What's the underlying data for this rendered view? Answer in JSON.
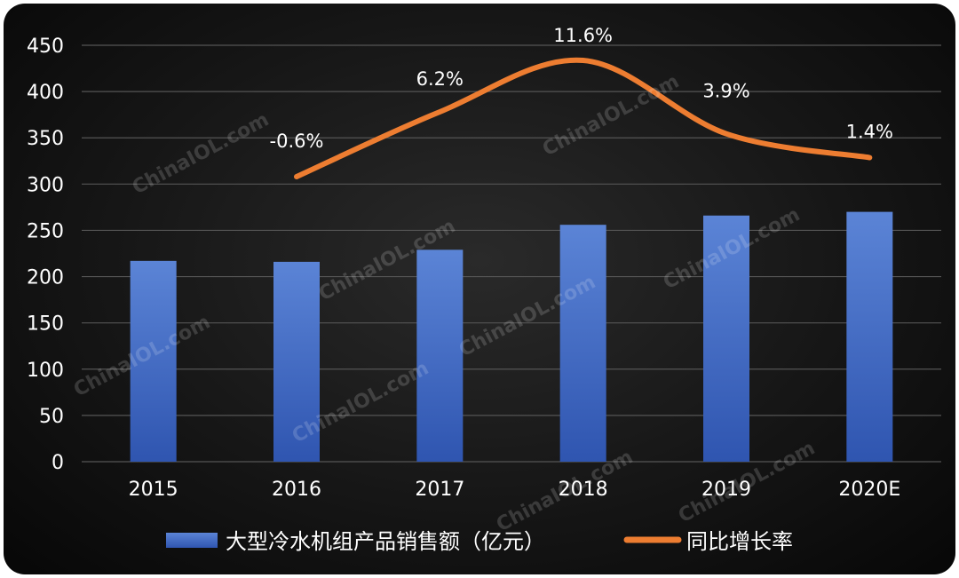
{
  "chart_data": {
    "type": "bar",
    "categories": [
      "2015",
      "2016",
      "2017",
      "2018",
      "2019",
      "2020E"
    ],
    "series": [
      {
        "name": "大型冷水机组产品销售额（亿元）",
        "type": "bar",
        "color": "#4a72c8",
        "values": [
          217,
          216,
          229,
          256,
          266,
          270
        ]
      },
      {
        "name": "同比增长率",
        "type": "line",
        "color": "#ed7d31",
        "values": [
          null,
          -0.6,
          6.2,
          11.6,
          3.9,
          1.4
        ],
        "labels": [
          "",
          "-0.6%",
          "6.2%",
          "11.6%",
          "3.9%",
          "1.4%"
        ]
      }
    ],
    "yticks": [
      "0",
      "50",
      "100",
      "150",
      "200",
      "250",
      "300",
      "350",
      "400",
      "450"
    ],
    "ylim": [
      0,
      450
    ],
    "grid": true,
    "legend_position": "bottom",
    "watermark": "ChinaIOL.com"
  }
}
